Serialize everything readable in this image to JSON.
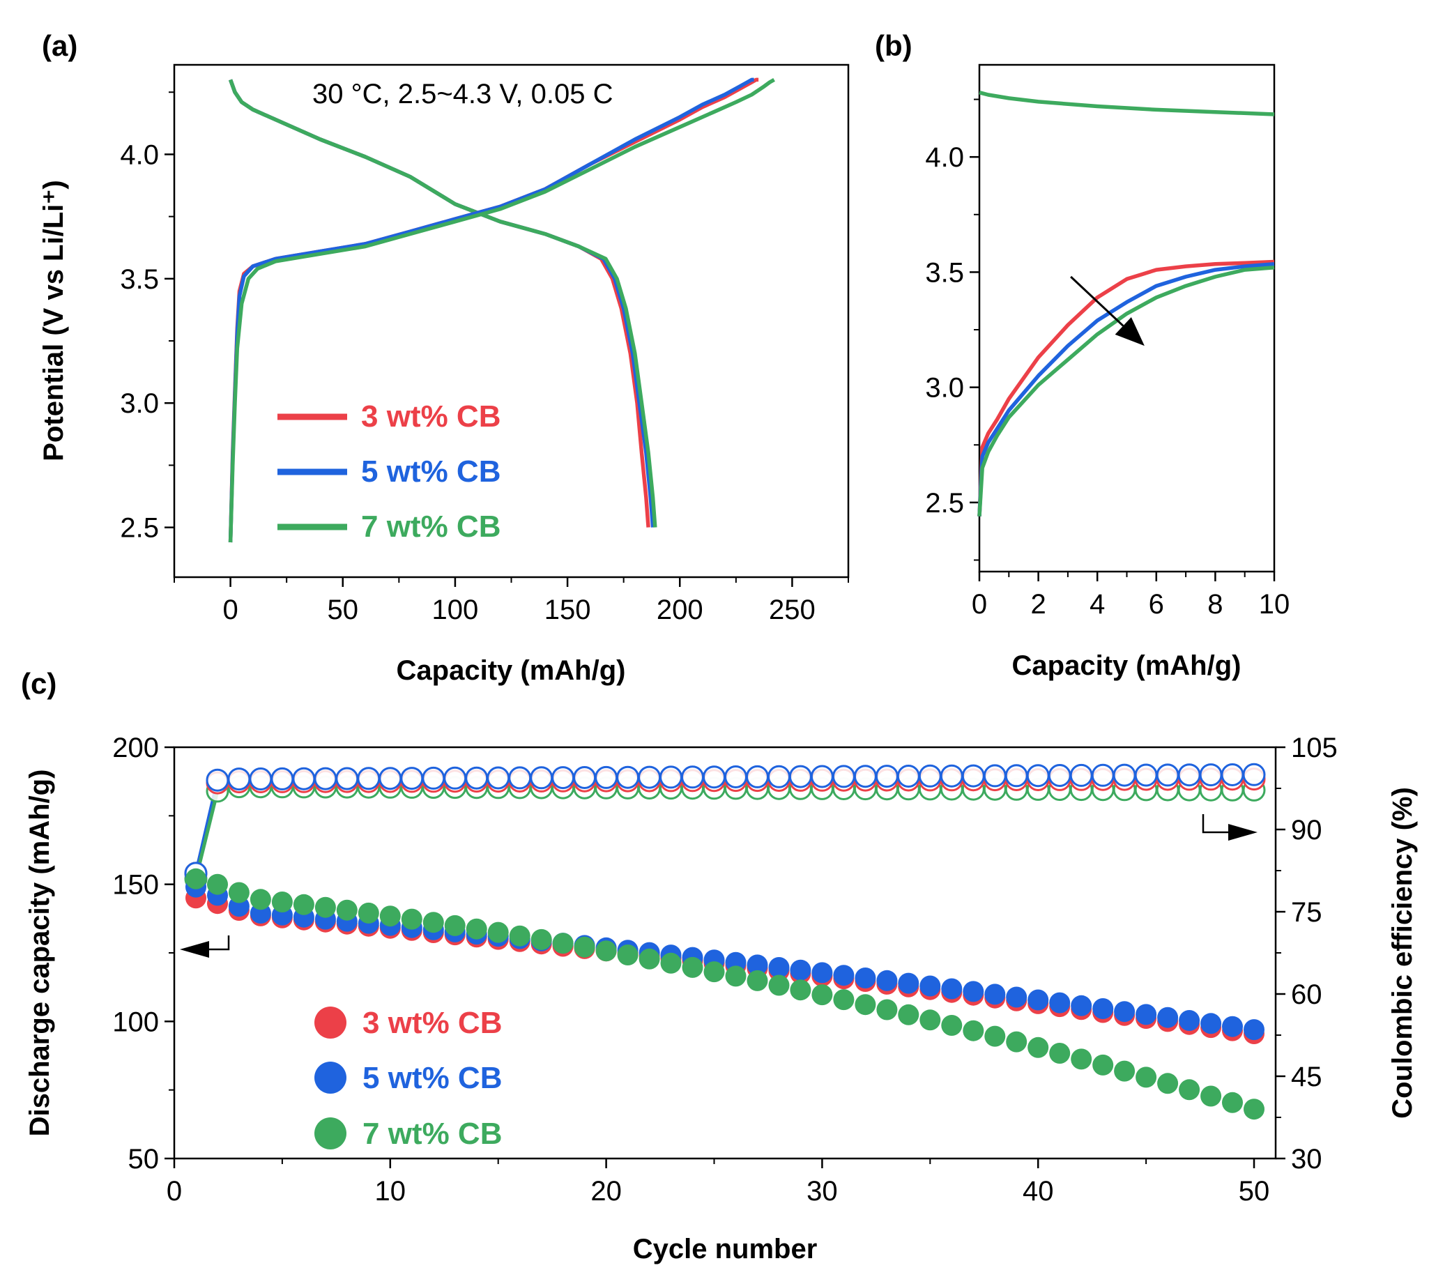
{
  "colors": {
    "red": "#ec4048",
    "blue": "#1f63de",
    "green": "#3daa5e",
    "axis": "#000000"
  },
  "chart_data": [
    {
      "panel": "(a)",
      "type": "line",
      "annotation": "30 °C, 2.5~4.3 V, 0.05 C",
      "xlabel": "Capacity (mAh/g)",
      "ylabel": "Potential (V vs Li/Li⁺)",
      "xlim": [
        -25,
        275
      ],
      "ylim": [
        2.3,
        4.36
      ],
      "xticks": [
        0,
        50,
        100,
        150,
        200,
        250
      ],
      "yticks": [
        2.5,
        3.0,
        3.5,
        4.0
      ],
      "legend": {
        "position": "lower-left",
        "entries": [
          "3 wt% CB",
          "5 wt% CB",
          "7 wt% CB"
        ]
      },
      "series": [
        {
          "name": "3 wt% CB",
          "charge": {
            "x": [
              0,
              1,
              2,
              3,
              4,
              6,
              10,
              20,
              40,
              60,
              80,
              100,
              120,
              140,
              160,
              180,
              200,
              210,
              220,
              228,
              232,
              234,
              235
            ],
            "y": [
              2.44,
              2.8,
              3.05,
              3.3,
              3.45,
              3.52,
              3.55,
              3.58,
              3.61,
              3.64,
              3.69,
              3.74,
              3.79,
              3.86,
              3.96,
              4.05,
              4.14,
              4.19,
              4.23,
              4.27,
              4.29,
              4.3,
              4.3
            ]
          },
          "discharge": {
            "x": [
              0,
              2,
              5,
              10,
              20,
              40,
              60,
              80,
              100,
              120,
              140,
              155,
              165,
              170,
              174,
              178,
              181,
              183,
              185,
              186
            ],
            "y": [
              4.3,
              4.25,
              4.21,
              4.18,
              4.14,
              4.06,
              3.99,
              3.91,
              3.8,
              3.73,
              3.68,
              3.63,
              3.58,
              3.5,
              3.38,
              3.2,
              3.0,
              2.8,
              2.62,
              2.5
            ]
          }
        },
        {
          "name": "5 wt% CB",
          "charge": {
            "x": [
              0,
              1,
              2,
              3,
              4,
              6,
              10,
              20,
              40,
              60,
              80,
              100,
              120,
              140,
              160,
              180,
              200,
              210,
              220,
              226,
              230,
              232,
              233
            ],
            "y": [
              2.44,
              2.78,
              3.03,
              3.28,
              3.43,
              3.51,
              3.55,
              3.58,
              3.61,
              3.64,
              3.69,
              3.74,
              3.79,
              3.86,
              3.96,
              4.06,
              4.15,
              4.2,
              4.24,
              4.27,
              4.29,
              4.3,
              4.3
            ]
          },
          "discharge": {
            "x": [
              0,
              2,
              5,
              10,
              20,
              40,
              60,
              80,
              100,
              120,
              140,
              155,
              166,
              171,
              175,
              179,
              182,
              185,
              187,
              188
            ],
            "y": [
              4.3,
              4.25,
              4.21,
              4.18,
              4.14,
              4.06,
              3.99,
              3.91,
              3.8,
              3.73,
              3.68,
              3.63,
              3.58,
              3.5,
              3.38,
              3.2,
              3.0,
              2.8,
              2.62,
              2.5
            ]
          }
        },
        {
          "name": "7 wt% CB",
          "charge": {
            "x": [
              0,
              1,
              2,
              3,
              5,
              8,
              12,
              20,
              40,
              60,
              80,
              100,
              120,
              140,
              160,
              180,
              200,
              215,
              225,
              232,
              237,
              240,
              242
            ],
            "y": [
              2.44,
              2.75,
              3.0,
              3.22,
              3.4,
              3.5,
              3.54,
              3.57,
              3.6,
              3.63,
              3.68,
              3.73,
              3.78,
              3.85,
              3.94,
              4.03,
              4.11,
              4.17,
              4.21,
              4.24,
              4.27,
              4.29,
              4.3
            ]
          },
          "discharge": {
            "x": [
              0,
              2,
              5,
              10,
              20,
              40,
              60,
              80,
              100,
              120,
              140,
              155,
              167,
              172,
              176,
              180,
              183,
              186,
              188,
              189
            ],
            "y": [
              4.3,
              4.25,
              4.21,
              4.18,
              4.14,
              4.06,
              3.99,
              3.91,
              3.8,
              3.73,
              3.68,
              3.63,
              3.58,
              3.5,
              3.38,
              3.2,
              3.0,
              2.8,
              2.62,
              2.5
            ]
          }
        }
      ]
    },
    {
      "panel": "(b)",
      "type": "line",
      "xlabel": "Capacity (mAh/g)",
      "ylabel": "",
      "xlim": [
        0,
        10
      ],
      "ylim": [
        2.2,
        4.4
      ],
      "xticks": [
        0,
        2,
        4,
        6,
        8,
        10
      ],
      "yticks": [
        2.5,
        3.0,
        3.5,
        4.0
      ],
      "annotation_arrow": {
        "from": [
          3.1,
          3.48
        ],
        "to": [
          5.6,
          3.18
        ]
      },
      "series": [
        {
          "name": "3 wt% CB",
          "x": [
            0,
            0.1,
            0.3,
            0.6,
            1,
            2,
            3,
            4,
            5,
            5.5,
            6,
            7,
            8,
            9,
            10
          ],
          "y": [
            2.44,
            2.74,
            2.8,
            2.86,
            2.95,
            3.13,
            3.27,
            3.39,
            3.47,
            3.49,
            3.51,
            3.525,
            3.535,
            3.54,
            3.545
          ]
        },
        {
          "name": "5 wt% CB",
          "x": [
            0,
            0.1,
            0.3,
            0.6,
            1,
            2,
            3,
            4,
            5,
            6,
            7,
            8,
            9,
            10
          ],
          "y": [
            2.44,
            2.7,
            2.76,
            2.82,
            2.9,
            3.05,
            3.18,
            3.29,
            3.37,
            3.44,
            3.48,
            3.51,
            3.525,
            3.535
          ]
        },
        {
          "name": "7 wt% CB",
          "x": [
            0,
            0.1,
            0.3,
            0.6,
            1,
            2,
            3,
            4,
            5,
            6,
            7,
            8,
            9,
            10
          ],
          "y": [
            2.44,
            2.65,
            2.72,
            2.79,
            2.87,
            3.01,
            3.12,
            3.23,
            3.32,
            3.39,
            3.44,
            3.48,
            3.51,
            3.52
          ]
        },
        {
          "name": "discharge (all)",
          "x": [
            0,
            0.3,
            1,
            2,
            4,
            6,
            8,
            10
          ],
          "y": [
            4.28,
            4.27,
            4.255,
            4.24,
            4.22,
            4.205,
            4.195,
            4.185
          ]
        }
      ]
    },
    {
      "panel": "(c)",
      "type": "scatter",
      "xlabel": "Cycle number",
      "ylabel": "Discharge capacity (mAh/g)",
      "y2label": "Coulombic efficiency (%)",
      "xlim": [
        0,
        51
      ],
      "ylim": [
        50,
        200
      ],
      "y2lim": [
        30,
        105
      ],
      "xticks": [
        0,
        10,
        20,
        30,
        40,
        50
      ],
      "yticks": [
        50,
        100,
        150,
        200
      ],
      "y2ticks": [
        30,
        45,
        60,
        75,
        90,
        105
      ],
      "legend": {
        "position": "lower-left",
        "entries": [
          "3 wt% CB",
          "5 wt% CB",
          "7 wt% CB"
        ]
      },
      "series": [
        {
          "name": "3 wt% CB",
          "capacity": {
            "first_cycles": [
              145,
              143,
              140.5
            ],
            "start_cycle": 4,
            "start_value": 138.5,
            "end_cycle": 50,
            "end_value": 95.5
          },
          "efficiency": {
            "first_cycles": [
              82,
              98.5
            ],
            "start_cycle": 3,
            "start_value": 98.7,
            "end_cycle": 50,
            "end_value": 99.2
          }
        },
        {
          "name": "5 wt% CB",
          "capacity": {
            "first_cycles": [
              149,
              146,
              142
            ],
            "start_cycle": 4,
            "start_value": 139.5,
            "end_cycle": 50,
            "end_value": 97
          },
          "efficiency": {
            "first_cycles": [
              82,
              99
            ],
            "start_cycle": 3,
            "start_value": 99.2,
            "end_cycle": 50,
            "end_value": 100
          }
        },
        {
          "name": "7 wt% CB",
          "capacity": {
            "first_cycles": [
              152,
              150,
              147
            ],
            "start_cycle": 4,
            "start_value": 144.5,
            "end_cycle": 50,
            "end_value": 68
          },
          "efficiency": {
            "first_cycles": [
              81,
              97
            ],
            "start_cycle": 3,
            "start_value": 97.8,
            "end_cycle": 50,
            "end_value": 97.2
          }
        }
      ]
    }
  ]
}
